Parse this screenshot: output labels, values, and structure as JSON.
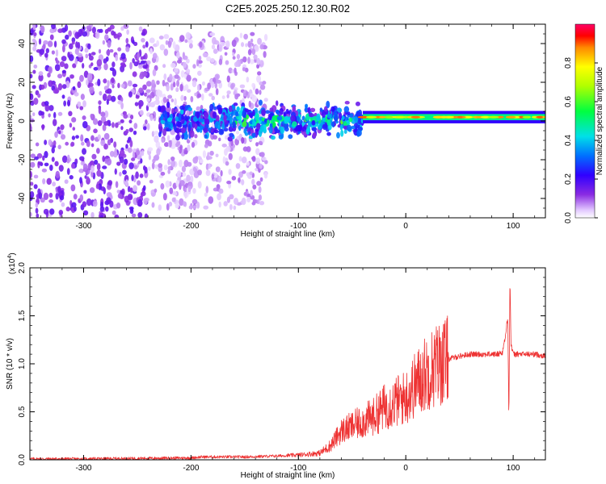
{
  "title": "C2E5.2025.250.12.30.R02",
  "chart_data": [
    {
      "type": "heatmap",
      "title": "C2E5.2025.250.12.30.R02",
      "xlabel": "Height of straight line (km)",
      "ylabel": "Frequency (Hz)",
      "xlim": [
        -350,
        130
      ],
      "ylim": [
        -50,
        50
      ],
      "x_ticks": [
        -300,
        -200,
        -100,
        0,
        100
      ],
      "x_tick_labels": [
        "-300",
        "-200",
        "-100",
        "0",
        "100"
      ],
      "y_ticks": [
        -40,
        -20,
        0,
        20,
        40
      ],
      "y_tick_labels": [
        "-40",
        "-20",
        "0",
        "20",
        "40"
      ],
      "colorbar": {
        "label": "Normalized spectral amplitude",
        "range": [
          0,
          1
        ],
        "ticks": [
          0.0,
          0.2,
          0.4,
          0.6,
          0.8
        ],
        "tick_labels": [
          "0.0",
          "0.2",
          "0.4",
          "0.6",
          "0.8"
        ],
        "colormap": "rainbow (white-violet-blue-cyan-green-yellow-red-magenta)"
      },
      "features": [
        {
          "x_range": [
            -350,
            -240
          ],
          "freq_range": [
            -50,
            50
          ],
          "amplitude": 0.15,
          "description": "scattered noise"
        },
        {
          "x_range": [
            -240,
            -130
          ],
          "freq_range": [
            -45,
            45
          ],
          "amplitude": 0.08,
          "description": "faint scattered noise"
        },
        {
          "x_range": [
            -230,
            -40
          ],
          "freq_range": [
            -8,
            8
          ],
          "amplitude": 0.35,
          "description": "broad band centered near 0 Hz"
        },
        {
          "x_range": [
            -40,
            130
          ],
          "freq_center": 2,
          "freq_halfwidth": 2,
          "amplitude": 0.9,
          "description": "narrow strong line near 2 Hz"
        }
      ]
    },
    {
      "type": "line",
      "xlabel": "Height of straight line (km)",
      "ylabel": "SNR (10 * v/v)",
      "y_scale_label": "(x10",
      "y_scale_exponent": "4",
      "xlim": [
        -350,
        130
      ],
      "ylim": [
        0,
        2.0
      ],
      "x_ticks": [
        -300,
        -200,
        -100,
        0,
        100
      ],
      "x_tick_labels": [
        "-300",
        "-200",
        "-100",
        "0",
        "100"
      ],
      "y_ticks": [
        0.0,
        0.5,
        1.0,
        1.5,
        2.0
      ],
      "y_tick_labels": [
        "0.0",
        "0.5",
        "1.0",
        "1.5",
        "2.0"
      ],
      "line_color": "#ee3333",
      "series": [
        {
          "x": [
            -350,
            -300,
            -250,
            -200,
            -190,
            -180,
            -150,
            -120,
            -100,
            -80,
            -70,
            -60,
            -50,
            -40,
            -30,
            -20,
            -10,
            0,
            10,
            20,
            30,
            40,
            50,
            60,
            70,
            80,
            85,
            90,
            93,
            95,
            96,
            97,
            98,
            100,
            105,
            110,
            120,
            130
          ],
          "y": [
            0.01,
            0.01,
            0.015,
            0.02,
            0.03,
            0.03,
            0.03,
            0.04,
            0.05,
            0.07,
            0.15,
            0.3,
            0.35,
            0.4,
            0.45,
            0.55,
            0.6,
            0.65,
            0.8,
            0.92,
            1.0,
            1.05,
            1.08,
            1.1,
            1.1,
            1.1,
            1.1,
            1.12,
            1.3,
            1.5,
            0.4,
            1.9,
            1.2,
            1.1,
            1.1,
            1.1,
            1.1,
            1.08
          ]
        }
      ]
    }
  ]
}
